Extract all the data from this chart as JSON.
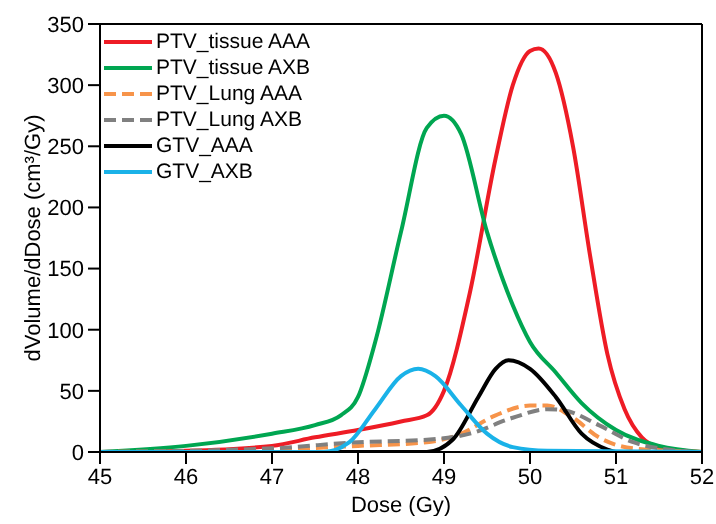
{
  "chart_data": {
    "type": "line",
    "xlabel": "Dose (Gy)",
    "ylabel": "dVolume/dDose (cm³/Gy)",
    "xlim": [
      45,
      52
    ],
    "xticks": [
      45,
      46,
      47,
      48,
      49,
      50,
      51,
      52
    ],
    "ylim": [
      0,
      350
    ],
    "yticks": [
      0,
      50,
      100,
      150,
      200,
      250,
      300,
      350
    ],
    "grid": false,
    "legend": "top left",
    "marker": "none",
    "series": [
      {
        "name": "PTV_tissue AAA",
        "color": "#ee1c25",
        "line_style": "solid",
        "x": [
          45,
          46,
          47,
          47.5,
          48,
          48.5,
          48.8,
          49,
          49.3,
          49.6,
          49.8,
          50,
          50.1,
          50.3,
          50.5,
          50.7,
          50.9,
          51.1,
          51.3,
          51.5,
          52
        ],
        "values": [
          0,
          1,
          5,
          12,
          18,
          25,
          30,
          50,
          130,
          240,
          300,
          328,
          330,
          310,
          250,
          160,
          80,
          35,
          12,
          4,
          0
        ]
      },
      {
        "name": "PTV_tissue AXB",
        "color": "#00a651",
        "line_style": "solid",
        "x": [
          45,
          46,
          47,
          47.5,
          47.8,
          48,
          48.2,
          48.5,
          48.8,
          49,
          49.2,
          49.5,
          49.8,
          50,
          50.3,
          50.6,
          51,
          51.5,
          52
        ],
        "values": [
          0,
          5,
          15,
          22,
          30,
          45,
          90,
          180,
          265,
          275,
          260,
          180,
          120,
          90,
          65,
          40,
          18,
          5,
          0
        ]
      },
      {
        "name": "PTV_Lung AAA",
        "color": "#f7944a",
        "line_style": "dashed",
        "x": [
          45,
          47,
          48,
          48.8,
          49.2,
          49.6,
          50,
          50.2,
          50.5,
          50.8,
          51.2,
          52
        ],
        "values": [
          0,
          2,
          5,
          8,
          15,
          30,
          38,
          38,
          28,
          12,
          3,
          0
        ]
      },
      {
        "name": "PTV_Lung AXB",
        "color": "#808080",
        "line_style": "dashed",
        "x": [
          45,
          47,
          48,
          48.8,
          49.3,
          49.8,
          50.2,
          50.4,
          50.8,
          51.2,
          51.6,
          52
        ],
        "values": [
          0,
          3,
          8,
          10,
          15,
          28,
          35,
          34,
          22,
          8,
          2,
          0
        ]
      },
      {
        "name": "GTV_AAA",
        "color": "#000000",
        "line_style": "solid",
        "x": [
          45,
          48.8,
          49.1,
          49.4,
          49.6,
          49.75,
          50,
          50.3,
          50.6,
          50.9,
          51,
          52
        ],
        "values": [
          0,
          0,
          10,
          45,
          68,
          75,
          68,
          45,
          15,
          2,
          0,
          0
        ]
      },
      {
        "name": "GTV_AXB",
        "color": "#1ab2e8",
        "line_style": "solid",
        "x": [
          45,
          47.6,
          47.9,
          48.2,
          48.5,
          48.7,
          48.9,
          49.2,
          49.5,
          49.8,
          50.2,
          52
        ],
        "values": [
          0,
          0,
          8,
          35,
          62,
          68,
          62,
          38,
          15,
          4,
          1,
          0
        ]
      }
    ]
  }
}
